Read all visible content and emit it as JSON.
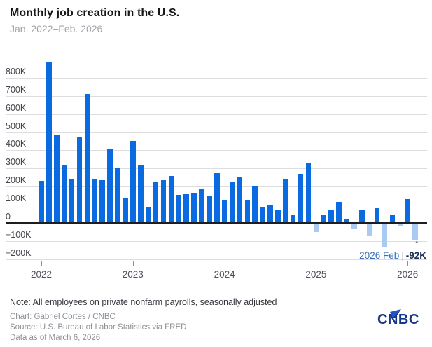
{
  "header": {
    "title": "Monthly job creation in the U.S.",
    "subtitle": "Jan. 2022–Feb. 2026"
  },
  "chart_data": {
    "type": "bar",
    "title": "Monthly job creation in the U.S.",
    "date_range": "Jan. 2022–Feb. 2026",
    "unit": "jobs added, thousands (K)",
    "categories": [
      "Jan 2022",
      "Feb 2022",
      "Mar 2022",
      "Apr 2022",
      "May 2022",
      "Jun 2022",
      "Jul 2022",
      "Aug 2022",
      "Sep 2022",
      "Oct 2022",
      "Nov 2022",
      "Dec 2022",
      "Jan 2023",
      "Feb 2023",
      "Mar 2023",
      "Apr 2023",
      "May 2023",
      "Jun 2023",
      "Jul 2023",
      "Aug 2023",
      "Sep 2023",
      "Oct 2023",
      "Nov 2023",
      "Dec 2023",
      "Jan 2024",
      "Feb 2024",
      "Mar 2024",
      "Apr 2024",
      "May 2024",
      "Jun 2024",
      "Jul 2024",
      "Aug 2024",
      "Sep 2024",
      "Oct 2024",
      "Nov 2024",
      "Dec 2024",
      "Jan 2025",
      "Feb 2025",
      "Mar 2025",
      "Apr 2025",
      "May 2025",
      "Jun 2025",
      "Jul 2025",
      "Aug 2025",
      "Sep 2025",
      "Oct 2025",
      "Nov 2025",
      "Dec 2025",
      "Jan 2026",
      "Feb 2026"
    ],
    "values": [
      230,
      890,
      485,
      315,
      245,
      470,
      710,
      245,
      235,
      410,
      305,
      135,
      450,
      315,
      90,
      225,
      235,
      260,
      155,
      160,
      165,
      190,
      145,
      275,
      125,
      225,
      250,
      125,
      200,
      90,
      95,
      75,
      245,
      45,
      270,
      330,
      -45,
      45,
      75,
      115,
      20,
      -25,
      70,
      -70,
      80,
      -130,
      45,
      -15,
      130,
      -92
    ],
    "ylim": [
      -200,
      900
    ],
    "grid": "horizontal",
    "legend": "none",
    "y_tick_labels": [
      "800K",
      "700K",
      "600K",
      "500K",
      "400K",
      "300K",
      "200K",
      "100K",
      "0",
      "−100K",
      "−200K"
    ],
    "y_tick_values": [
      800,
      700,
      600,
      500,
      400,
      300,
      200,
      100,
      0,
      -100,
      -200
    ],
    "x_tick_labels": [
      "2022",
      "2023",
      "2024",
      "2025",
      "2026"
    ],
    "x_tick_month_indices": [
      0,
      12,
      24,
      36,
      48
    ],
    "colors": {
      "positive_bar": "#0a6be1",
      "negative_bar": "#a9cbf3",
      "zero_axis": "#1c1e21"
    },
    "annotation": {
      "month": "2026 Feb",
      "separator": "|",
      "value": "-92K",
      "arrow": "↑",
      "points_to": "Feb 2026"
    }
  },
  "footer": {
    "note": "Note: All employees on private nonfarm payrolls, seasonally adjusted",
    "credit": "Chart: Gabriel Cortes / CNBC",
    "source": "Source: U.S. Bureau of Labor Statistics via FRED",
    "as_of": "Data as of March 6, 2026",
    "logo_text": "CNBC"
  }
}
